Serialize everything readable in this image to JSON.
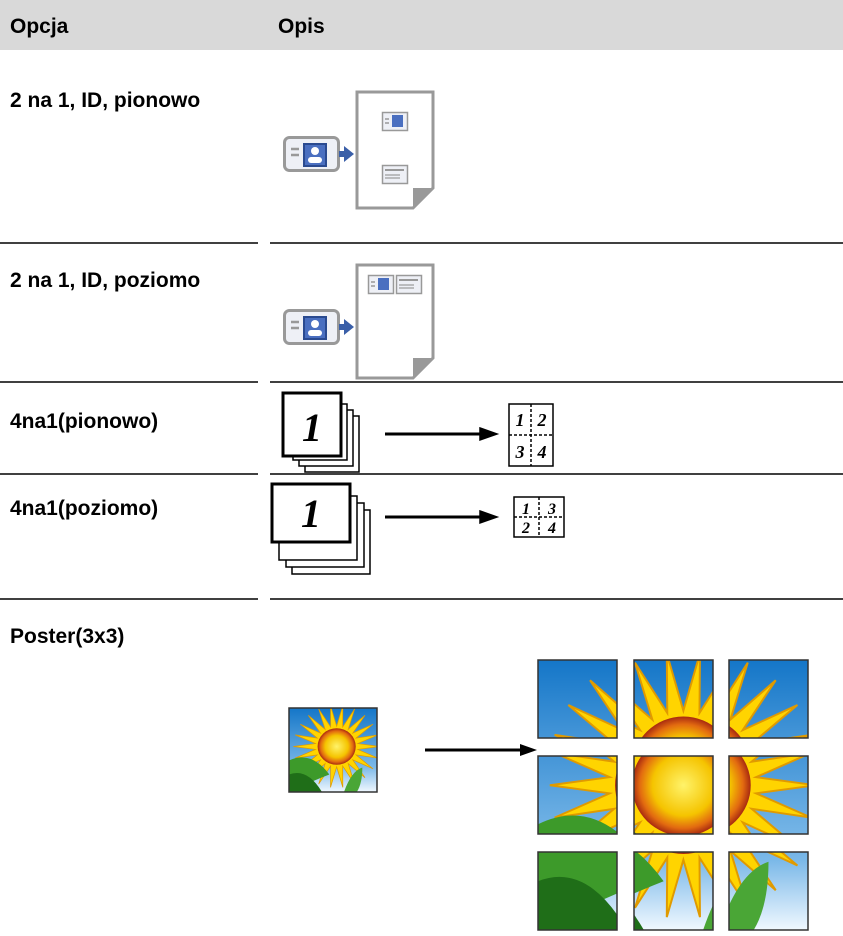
{
  "table": {
    "header": [
      "Opcja",
      "Opis"
    ],
    "rows": [
      {
        "option": "2 na 1, ID, pionowo"
      },
      {
        "option": "2 na 1, ID, poziomo"
      },
      {
        "option": "4na1(pionowo)",
        "illustration": {
          "stack": "1",
          "pages": [
            "1",
            "2",
            "3",
            "4"
          ]
        }
      },
      {
        "option": "4na1(poziomo)",
        "illustration": {
          "stack": "1",
          "pages": [
            "1",
            "3",
            "2",
            "4"
          ]
        }
      },
      {
        "option": "Poster(3x3)"
      }
    ]
  }
}
